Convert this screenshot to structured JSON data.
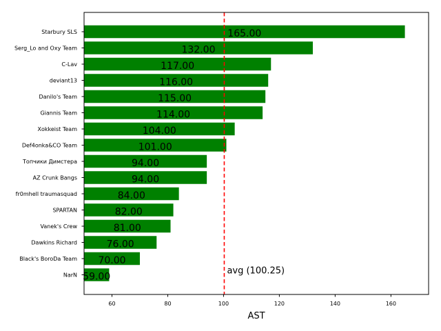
{
  "chart_data": {
    "type": "bar",
    "orientation": "horizontal",
    "categories": [
      "Starbury SLS",
      "Serg_Lo and Oxy Team",
      "C-Lav",
      "deviant13",
      "Danilo's Team",
      "Giannis Team",
      "Xokkeist Team",
      "Def4onka&CO Team",
      "Топчики Димстера",
      "AZ Crunk Bangs",
      "fr0mhell traumasquad",
      "SPARTAN",
      "Vanek's Crew",
      "Dawkins Richard",
      "Black's BoroDa Team",
      "NarN"
    ],
    "values": [
      165,
      132,
      117,
      116,
      115,
      114,
      104,
      101,
      94,
      94,
      84,
      82,
      81,
      76,
      70,
      59
    ],
    "data_labels": [
      "165.00",
      "132.00",
      "117.00",
      "116.00",
      "115.00",
      "114.00",
      "104.00",
      "101.00",
      "94.00",
      "94.00",
      "84.00",
      "82.00",
      "81.00",
      "76.00",
      "70.00",
      "59.00"
    ],
    "xlabel": "AST",
    "ylabel": "",
    "title": "",
    "xlim": [
      50,
      173.5
    ],
    "xticks": [
      60,
      80,
      100,
      120,
      140,
      160
    ],
    "xtick_labels": [
      "60",
      "80",
      "100",
      "120",
      "140",
      "160"
    ],
    "grid": false,
    "average": {
      "value": 100.25,
      "label": "avg (100.25)"
    },
    "colors": {
      "bar": "#008000",
      "avg_line": "#ff0000",
      "axis": "#000000"
    }
  }
}
